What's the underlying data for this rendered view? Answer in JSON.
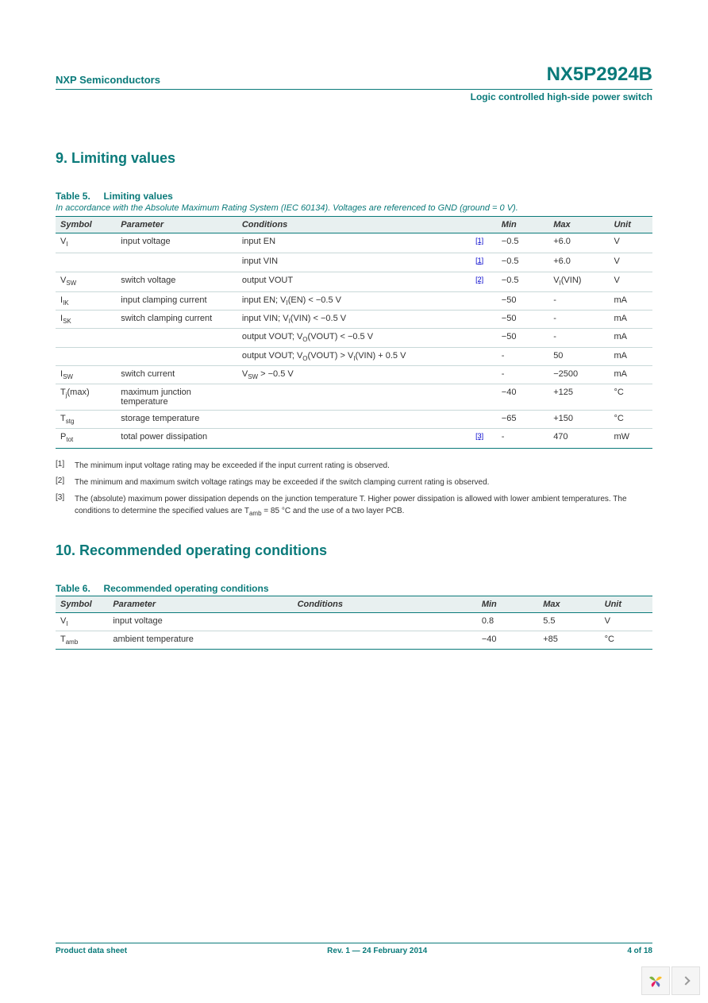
{
  "header": {
    "company": "NXP Semiconductors",
    "part_number": "NX5P2924B",
    "subtitle": "Logic controlled high-side power switch"
  },
  "section9": {
    "title": "9. Limiting values",
    "table_label": "Table 5.",
    "table_title": "Limiting values",
    "table_note": "In accordance with the Absolute Maximum Rating System (IEC 60134). Voltages are referenced to GND (ground = 0 V).",
    "columns": [
      "Symbol",
      "Parameter",
      "Conditions",
      "",
      "Min",
      "Max",
      "Unit"
    ],
    "rows": [
      {
        "symbol": "V_I",
        "param": "input voltage",
        "cond": "input EN",
        "ref": "[1]",
        "min": "−0.5",
        "max": "+6.0",
        "unit": "V"
      },
      {
        "symbol": "",
        "param": "",
        "cond": "input VIN",
        "ref": "[1]",
        "min": "−0.5",
        "max": "+6.0",
        "unit": "V"
      },
      {
        "symbol": "V_SW",
        "param": "switch voltage",
        "cond": "output VOUT",
        "ref": "[2]",
        "min": "−0.5",
        "max": "V_I(VIN)",
        "unit": "V"
      },
      {
        "symbol": "I_IK",
        "param": "input clamping current",
        "cond": "input EN; V_I(EN) < −0.5 V",
        "ref": "",
        "min": "−50",
        "max": "-",
        "unit": "mA"
      },
      {
        "symbol": "I_SK",
        "param": "switch clamping current",
        "cond": "input VIN; V_I(VIN) < −0.5 V",
        "ref": "",
        "min": "−50",
        "max": "-",
        "unit": "mA"
      },
      {
        "symbol": "",
        "param": "",
        "cond": "output VOUT; V_O(VOUT) < −0.5 V",
        "ref": "",
        "min": "−50",
        "max": "-",
        "unit": "mA"
      },
      {
        "symbol": "",
        "param": "",
        "cond": "output VOUT; V_O(VOUT) > V_I(VIN) + 0.5 V",
        "ref": "",
        "min": "-",
        "max": "50",
        "unit": "mA"
      },
      {
        "symbol": "I_SW",
        "param": "switch current",
        "cond": "V_SW > −0.5 V",
        "ref": "",
        "min": "-",
        "max": "−2500",
        "unit": "mA"
      },
      {
        "symbol": "T_j(max)",
        "param": "maximum junction temperature",
        "cond": "",
        "ref": "",
        "min": "−40",
        "max": "+125",
        "unit": "°C"
      },
      {
        "symbol": "T_stg",
        "param": "storage temperature",
        "cond": "",
        "ref": "",
        "min": "−65",
        "max": "+150",
        "unit": "°C"
      },
      {
        "symbol": "P_tot",
        "param": "total power dissipation",
        "cond": "",
        "ref": "[3]",
        "min": "-",
        "max": "470",
        "unit": "mW"
      }
    ],
    "footnotes": [
      {
        "num": "[1]",
        "text": "The minimum input voltage rating may be exceeded if the input current rating is observed."
      },
      {
        "num": "[2]",
        "text": "The minimum and maximum switch voltage ratings may be exceeded if the switch clamping current rating is observed."
      },
      {
        "num": "[3]",
        "text": "The (absolute) maximum power dissipation depends on the junction temperature T. Higher power dissipation is allowed with lower ambient temperatures. The conditions to determine the specified values are T_amb = 85 °C and the use of a two layer PCB."
      }
    ]
  },
  "section10": {
    "title": "10. Recommended operating conditions",
    "table_label": "Table 6.",
    "table_title": "Recommended operating conditions",
    "columns": [
      "Symbol",
      "Parameter",
      "Conditions",
      "Min",
      "Max",
      "Unit"
    ],
    "rows": [
      {
        "symbol": "V_I",
        "param": "input voltage",
        "cond": "",
        "min": "0.8",
        "max": "5.5",
        "unit": "V"
      },
      {
        "symbol": "T_amb",
        "param": "ambient temperature",
        "cond": "",
        "min": "−40",
        "max": "+85",
        "unit": "°C"
      }
    ]
  },
  "footer": {
    "left": "Product data sheet",
    "center": "Rev. 1 — 24 February 2014",
    "right": "4 of 18"
  },
  "col_widths": {
    "symbol": "70px",
    "param": "140px",
    "cond": "270px",
    "ref": "30px",
    "min": "60px",
    "max": "70px",
    "unit": "50px"
  }
}
